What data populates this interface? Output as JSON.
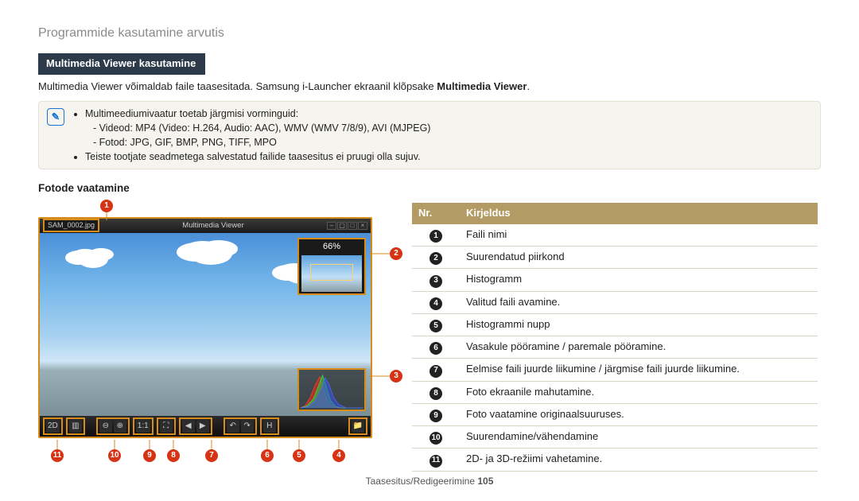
{
  "page_title": "Programmide kasutamine arvutis",
  "section_bar": "Multimedia Viewer kasutamine",
  "intro_prefix": "Multimedia Viewer võimaldab faile taasesitada. Samsung i-Launcher ekraanil klõpsake ",
  "intro_bold": "Multimedia Viewer",
  "intro_suffix": ".",
  "note": {
    "b1": "Multimeediumivaatur toetab järgmisi vorminguid:",
    "video_line": "Videod: MP4 (Video: H.264, Audio: AAC), WMV (WMV 7/8/9), AVI (MJPEG)",
    "photo_line": "Fotod: JPG, GIF, BMP, PNG, TIFF, MPO",
    "b2": "Teiste tootjate seadmetega salvestatud failide taasesitus ei pruugi olla sujuv."
  },
  "subheading": "Fotode vaatamine",
  "viewer": {
    "file_label": "SAM_0002.jpg",
    "app_name": "Multimedia Viewer",
    "zoom_pct": "66%",
    "toolbar": {
      "mode2d": "2D",
      "histo": "▥",
      "zoomout": "⊖",
      "zoomin": "⊕",
      "fit11": "1:1",
      "fitscreen": "⛶",
      "prev": "◀",
      "next": "▶",
      "rotleft": "↶",
      "rotright": "↷",
      "histbtn": "H",
      "open": "📁"
    }
  },
  "table": {
    "head_nr": "Nr.",
    "head_desc": "Kirjeldus",
    "rows": [
      {
        "n": "1",
        "t": "Faili nimi"
      },
      {
        "n": "2",
        "t": "Suurendatud piirkond"
      },
      {
        "n": "3",
        "t": "Histogramm"
      },
      {
        "n": "4",
        "t": "Valitud faili avamine."
      },
      {
        "n": "5",
        "t": "Histogrammi nupp"
      },
      {
        "n": "6",
        "t": "Vasakule pööramine / paremale pööramine."
      },
      {
        "n": "7",
        "t": "Eelmise faili juurde liikumine / järgmise faili juurde liikumine."
      },
      {
        "n": "8",
        "t": "Foto ekraanile mahutamine."
      },
      {
        "n": "9",
        "t": "Foto vaatamine originaalsuuruses."
      },
      {
        "n": "10",
        "t": "Suurendamine/vähendamine"
      },
      {
        "n": "11",
        "t": "2D- ja 3D-režiimi vahetamine."
      }
    ]
  },
  "footer_prefix": "Taasesitus/Redigeerimine  ",
  "footer_page": "105",
  "colors": {
    "section_bg": "#2d3a4a",
    "note_bg": "#f6f4ee",
    "table_head_bg": "#b49b65",
    "callout_bg": "#d63315",
    "frame_border": "#d78b1a"
  }
}
